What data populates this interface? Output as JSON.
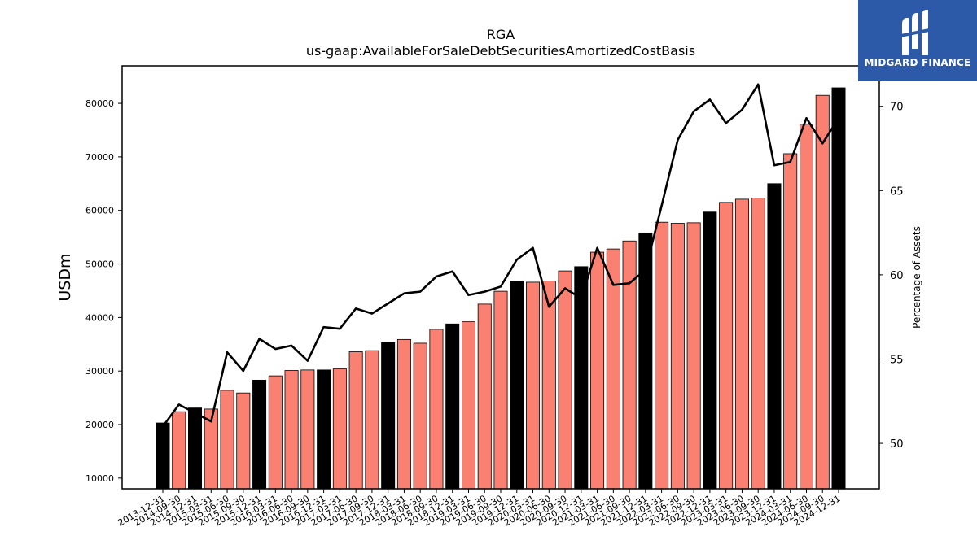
{
  "brand": {
    "name": "MIDGARD FINANCE",
    "color": "#2d5aa8"
  },
  "chart_data": {
    "type": "bar",
    "title": "RGA",
    "subtitle": "us-gaap:AvailableForSaleDebtSecuritiesAmortizedCostBasis",
    "ylabel": "USDm",
    "y2label": "Percentage of Assets",
    "ylim": [
      8000,
      87000
    ],
    "y2lim": [
      47.3,
      72.4
    ],
    "yticks": [
      10000,
      20000,
      30000,
      40000,
      50000,
      60000,
      70000,
      80000
    ],
    "y2ticks": [
      50,
      55,
      60,
      65,
      70
    ],
    "grid": false,
    "colors": {
      "year_end": "#000000",
      "quarter": "#fa8072",
      "line": "#000000"
    },
    "categories": [
      "2013-12-31",
      "2014-09-30",
      "2014-12-31",
      "2015-03-31",
      "2015-06-30",
      "2015-09-30",
      "2015-12-31",
      "2016-03-31",
      "2016-06-30",
      "2016-09-30",
      "2016-12-31",
      "2017-03-31",
      "2017-06-30",
      "2017-09-30",
      "2017-12-31",
      "2018-03-31",
      "2018-06-30",
      "2018-09-30",
      "2018-12-31",
      "2019-03-31",
      "2019-06-30",
      "2019-09-30",
      "2019-12-31",
      "2020-03-31",
      "2020-06-30",
      "2020-09-30",
      "2020-12-31",
      "2021-03-31",
      "2021-06-30",
      "2021-09-30",
      "2021-12-31",
      "2022-03-31",
      "2022-06-30",
      "2022-09-30",
      "2022-12-31",
      "2023-03-31",
      "2023-06-30",
      "2023-09-30",
      "2023-12-31",
      "2024-03-31",
      "2024-06-30",
      "2024-09-30",
      "2024-12-31"
    ],
    "series": [
      {
        "values": [
          20300,
          22400,
          23100,
          22900,
          26400,
          25900,
          28300,
          29100,
          30100,
          30200,
          30200,
          30400,
          33600,
          33800,
          35300,
          35900,
          35200,
          37800,
          38800,
          39200,
          42500,
          44900,
          46800,
          46600,
          46800,
          48700,
          49500,
          52200,
          52800,
          54300,
          55800,
          57800,
          57600,
          57700,
          59700,
          61500,
          62100,
          62300,
          65000,
          70600,
          76100,
          81500,
          82900
        ]
      },
      {
        "values": [
          51.0,
          52.3,
          51.8,
          51.3,
          55.4,
          54.3,
          56.2,
          55.6,
          55.8,
          54.9,
          56.9,
          56.8,
          58.0,
          57.7,
          58.3,
          58.9,
          59.0,
          59.9,
          60.2,
          58.8,
          59.0,
          59.3,
          60.9,
          61.6,
          58.1,
          59.2,
          58.6,
          61.6,
          59.4,
          59.5,
          60.3,
          64.1,
          68.0,
          69.7,
          70.4,
          69.0,
          69.8,
          71.3,
          66.5,
          66.7,
          69.3,
          67.8,
          69.3
        ]
      }
    ]
  }
}
